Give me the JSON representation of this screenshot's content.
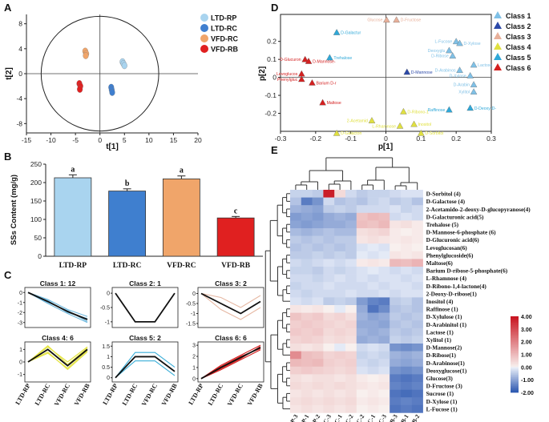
{
  "panels": {
    "A": {
      "letter": "A",
      "xlabel": "t[1]",
      "ylabel": "t[2]",
      "xticks": [
        -15,
        -10,
        -5,
        0,
        5,
        10,
        15,
        20
      ],
      "yticks": [
        -8,
        -4,
        0,
        4,
        8
      ],
      "xlim": [
        -15,
        20
      ],
      "ylim": [
        -9.5,
        9.5
      ],
      "legend": [
        {
          "label": "LTD-RP",
          "color": "#a9d4ef"
        },
        {
          "label": "LTD-RC",
          "color": "#3f7fcf"
        },
        {
          "label": "VFD-RC",
          "color": "#f0a56a"
        },
        {
          "label": "VFD-RB",
          "color": "#e02020"
        }
      ],
      "groups": [
        {
          "name": "LTD-RP",
          "color": "#a9d4ef",
          "points": [
            [
              4.6,
              1.9
            ],
            [
              4.8,
              1.6
            ],
            [
              5.0,
              1.3
            ]
          ]
        },
        {
          "name": "LTD-RC",
          "color": "#3f7fcf",
          "points": [
            [
              2.3,
              -2.2
            ],
            [
              2.4,
              -2.6
            ],
            [
              2.5,
              -3.0
            ]
          ]
        },
        {
          "name": "VFD-RC",
          "color": "#f0a56a",
          "points": [
            [
              -3.0,
              3.6
            ],
            [
              -2.8,
              3.2
            ],
            [
              -2.9,
              2.9
            ]
          ]
        },
        {
          "name": "VFD-RB",
          "color": "#e02020",
          "points": [
            [
              -4.2,
              -1.6
            ],
            [
              -4.0,
              -2.0
            ],
            [
              -4.1,
              -2.5
            ]
          ]
        }
      ]
    },
    "B": {
      "letter": "B",
      "ylabel": "SSs Content (mg/g)",
      "yticks": [
        0,
        50,
        100,
        150,
        200,
        250
      ],
      "ylim": [
        0,
        250
      ],
      "categories": [
        "LTD-RP",
        "LTD-RC",
        "VFD-RC",
        "VFD-RB"
      ],
      "values": [
        213,
        177,
        210,
        104
      ],
      "errors": [
        8,
        6,
        8,
        4
      ],
      "letters": [
        "a",
        "b",
        "a",
        "c"
      ],
      "colors": [
        "#a9d4ef",
        "#3f7fcf",
        "#f0a56a",
        "#e02020"
      ]
    },
    "C": {
      "letter": "C",
      "xlabels": [
        "LTD-RP",
        "LTD-RC",
        "VFD-RC",
        "VFD-RB"
      ],
      "classes": [
        {
          "title": "Class 1: 12",
          "yticks": [
            0,
            -1,
            -2,
            -3
          ],
          "ylim": [
            -3.5,
            0.5
          ],
          "color": "#6fb8dd",
          "mean": [
            0,
            -0.9,
            -1.9,
            -2.7
          ],
          "lines": [
            [
              0,
              -0.7,
              -1.7,
              -2.4
            ],
            [
              0,
              -1.1,
              -2.1,
              -3.0
            ],
            [
              0,
              -0.8,
              -2.0,
              -2.6
            ],
            [
              0,
              -1.0,
              -1.8,
              -2.9
            ]
          ]
        },
        {
          "title": "Class 2: 1",
          "yticks": [
            0,
            -0.5,
            -1
          ],
          "ylim": [
            -1.2,
            0.2
          ],
          "color": "#1a1a1a",
          "mean": [
            0,
            -1,
            -1,
            0
          ],
          "lines": []
        },
        {
          "title": "Class 3: 2",
          "yticks": [
            0,
            -0.5,
            -1,
            -1.5
          ],
          "ylim": [
            -1.7,
            0.3
          ],
          "color": "#e6b8a3",
          "mean": [
            0,
            -0.5,
            -1.0,
            -0.4
          ],
          "lines": [
            [
              0,
              -0.2,
              -0.7,
              -0.1
            ],
            [
              0,
              -0.8,
              -1.3,
              -0.7
            ]
          ]
        },
        {
          "title": "Class 4: 6",
          "yticks": [
            1,
            0,
            -1
          ],
          "ylim": [
            -1.6,
            1.6
          ],
          "color": "#e3e340",
          "mean": [
            0,
            1.0,
            -0.3,
            1.0
          ],
          "lines": [
            [
              0,
              1.2,
              0.0,
              1.2
            ],
            [
              0,
              0.8,
              -0.6,
              0.8
            ],
            [
              0,
              1.3,
              -0.2,
              1.1
            ],
            [
              0,
              0.7,
              -0.5,
              0.9
            ]
          ]
        },
        {
          "title": "Class 5: 2",
          "yticks": [
            1.5,
            1,
            0.5,
            0
          ],
          "ylim": [
            -0.2,
            1.7
          ],
          "color": "#3aaed8",
          "mean": [
            0,
            1.0,
            1.0,
            0.3
          ],
          "lines": [
            [
              0,
              1.2,
              1.2,
              0.5
            ],
            [
              0,
              0.8,
              0.8,
              0.1
            ]
          ]
        },
        {
          "title": "Class 6: 6",
          "yticks": [
            3,
            2,
            1,
            0
          ],
          "ylim": [
            -0.3,
            3.3
          ],
          "color": "#d42020",
          "mean": [
            0,
            1.0,
            1.9,
            2.8
          ],
          "lines": [
            [
              0,
              0.8,
              1.7,
              2.6
            ],
            [
              0,
              1.2,
              2.1,
              3.0
            ],
            [
              0,
              0.9,
              1.8,
              2.9
            ],
            [
              0,
              1.1,
              2.0,
              2.7
            ]
          ]
        }
      ]
    },
    "D": {
      "letter": "D",
      "xlabel": "p[1]",
      "ylabel": "p[2]",
      "xticks": [
        -0.3,
        -0.2,
        -0.1,
        0,
        0.1,
        0.2,
        0.3
      ],
      "yticks": [
        -0.2,
        -0.1,
        0,
        0.1,
        0.2
      ],
      "xlim": [
        -0.3,
        0.3
      ],
      "ylim": [
        -0.3,
        0.35
      ],
      "legend": [
        {
          "label": "Class 1",
          "color": "#7fc0e6"
        },
        {
          "label": "Class 2",
          "color": "#2c49a8"
        },
        {
          "label": "Class 3",
          "color": "#e8b09a"
        },
        {
          "label": "Class 4",
          "color": "#e0e040"
        },
        {
          "label": "Class 5",
          "color": "#2fa8d8"
        },
        {
          "label": "Class 6",
          "color": "#d42020"
        }
      ],
      "points": [
        {
          "label": "Glucose",
          "cls": 3,
          "x": 0.002,
          "y": 0.32,
          "side": "left"
        },
        {
          "label": "D-Fructose",
          "cls": 3,
          "x": 0.03,
          "y": 0.32,
          "side": "right"
        },
        {
          "label": "D-Galactur",
          "cls": 5,
          "x": -0.14,
          "y": 0.25,
          "side": "right"
        },
        {
          "label": "L-Fucose",
          "cls": 1,
          "x": 0.2,
          "y": 0.2,
          "side": "left"
        },
        {
          "label": "D-Xylose",
          "cls": 1,
          "x": 0.21,
          "y": 0.19,
          "side": "right"
        },
        {
          "label": "Deoxyglu",
          "cls": 1,
          "x": 0.18,
          "y": 0.15,
          "side": "left"
        },
        {
          "label": "D-Ribose",
          "cls": 1,
          "x": 0.19,
          "y": 0.12,
          "side": "left"
        },
        {
          "label": "D-Glucuron",
          "cls": 6,
          "x": -0.23,
          "y": 0.1,
          "side": "left"
        },
        {
          "label": "D-Mannose-",
          "cls": 6,
          "x": -0.22,
          "y": 0.09,
          "side": "right"
        },
        {
          "label": "Trehalose",
          "cls": 5,
          "x": -0.16,
          "y": 0.11,
          "side": "right"
        },
        {
          "label": "Lactose",
          "cls": 1,
          "x": 0.25,
          "y": 0.07,
          "side": "right"
        },
        {
          "label": "D-Arabinos",
          "cls": 1,
          "x": 0.21,
          "y": 0.04,
          "side": "left"
        },
        {
          "label": "D-Mannose",
          "cls": 2,
          "x": 0.06,
          "y": 0.03,
          "side": "right"
        },
        {
          "label": "Levoglucos",
          "cls": 6,
          "x": -0.24,
          "y": 0.02,
          "side": "left"
        },
        {
          "label": "D-Xylose",
          "cls": 1,
          "x": 0.24,
          "y": 0.01,
          "side": "left"
        },
        {
          "label": "Phenylgluc",
          "cls": 6,
          "x": -0.24,
          "y": -0.01,
          "side": "left"
        },
        {
          "label": "Barium D-r",
          "cls": 6,
          "x": -0.21,
          "y": -0.03,
          "side": "right"
        },
        {
          "label": "D-Arabin",
          "cls": 1,
          "x": 0.25,
          "y": -0.04,
          "side": "left"
        },
        {
          "label": "Xylitol",
          "cls": 1,
          "x": 0.25,
          "y": -0.08,
          "side": "left"
        },
        {
          "label": "Maltose",
          "cls": 6,
          "x": -0.18,
          "y": -0.14,
          "side": "right"
        },
        {
          "label": "Raffinose",
          "cls": 5,
          "x": 0.18,
          "y": -0.18,
          "side": "left"
        },
        {
          "label": "D-Deoxy-D-",
          "cls": 5,
          "x": 0.24,
          "y": -0.17,
          "side": "right"
        },
        {
          "label": "D-Ribono-1",
          "cls": 4,
          "x": 0.05,
          "y": -0.19,
          "side": "right"
        },
        {
          "label": "2-Acetamid",
          "cls": 4,
          "x": -0.04,
          "y": -0.24,
          "side": "left"
        },
        {
          "label": "L-Rhamnose",
          "cls": 4,
          "x": 0.04,
          "y": -0.27,
          "side": "left"
        },
        {
          "label": "Inositol",
          "cls": 4,
          "x": 0.08,
          "y": -0.26,
          "side": "right"
        },
        {
          "label": "D-Galacton",
          "cls": 4,
          "x": -0.14,
          "y": -0.31,
          "side": "right"
        },
        {
          "label": "D-Sorbitol",
          "cls": 4,
          "x": 0.1,
          "y": -0.31,
          "side": "right"
        }
      ]
    },
    "E": {
      "letter": "E",
      "columns": [
        "LTD-RP-3",
        "LTD-RP-1",
        "LTD-RP-2",
        "LTD-RC-3",
        "LTD-RC-1",
        "LTD-RC-2",
        "VFD-RC-2",
        "VFD-RC-1",
        "VFD-RC-3",
        "VFD-RB-3",
        "VFD-RB-1",
        "VFD-RB-2"
      ],
      "rows": [
        "D-Sorbitol (4)",
        "D-Galactose (4)",
        "2-Acetamido-2-deoxy-D-glucopyranose(4)",
        "D-Galacturonic acid(5)",
        "Trehalose (5)",
        "D-Mannose-6-phosphate (6)",
        "D-Glucuronic acid(6)",
        "Levoglucosan(6)",
        "Phenylglucoside(6)",
        "Maltose(6)",
        "Barium D-ribose-5-phosphate(6)",
        "L-Rhamnose (4)",
        "D-Ribono-1,4-lactone(4)",
        "2-Deoxy-D-ribose(1)",
        "Inositol (4)",
        "Raffinose (1)",
        "D-Xylulose (1)",
        "D-Arabinitol (1)",
        "Lactose (1)",
        "Xylitol (1)",
        "D-Mannose(2)",
        "D-Ribose(1)",
        "D-Arabinose(1)",
        "Deoxyglucose(1)",
        "Glucose(3)",
        "D-Fructose (3)",
        "Sucrose (1)",
        "D-Xylose (1)",
        "L-Fucose (1)"
      ],
      "values": [
        [
          -0.4,
          -0.4,
          -0.5,
          3.8,
          0.4,
          -0.3,
          -0.5,
          -0.4,
          -0.4,
          -0.3,
          -0.2,
          -0.2
        ],
        [
          -0.6,
          -1.5,
          -1.2,
          -0.3,
          -0.6,
          -0.5,
          -0.6,
          -0.4,
          -0.3,
          -0.5,
          -0.4,
          -0.6
        ],
        [
          -0.8,
          -0.9,
          -1.0,
          -0.5,
          -0.4,
          -0.5,
          -0.3,
          -0.3,
          -0.3,
          -0.2,
          -0.4,
          -0.3
        ],
        [
          -1.1,
          -1.0,
          -1.1,
          -0.9,
          -0.8,
          -0.9,
          0.8,
          1.0,
          0.9,
          -0.3,
          -0.2,
          -0.3
        ],
        [
          -1.0,
          -1.1,
          -1.0,
          -0.9,
          -0.9,
          -0.8,
          0.9,
          0.8,
          1.0,
          0.2,
          0.3,
          0.1
        ],
        [
          -0.7,
          -0.8,
          -0.7,
          -0.6,
          -0.7,
          -0.7,
          0.3,
          0.4,
          0.5,
          0.1,
          0.0,
          0.1
        ],
        [
          -0.5,
          -0.6,
          -0.5,
          -0.6,
          -0.5,
          -0.5,
          0.2,
          0.3,
          0.2,
          0.1,
          0.2,
          0.1
        ],
        [
          -0.6,
          -0.5,
          -0.6,
          -0.5,
          -0.6,
          -0.5,
          -0.2,
          -0.1,
          -0.2,
          0.0,
          0.1,
          0.0
        ],
        [
          -0.5,
          -0.5,
          -0.4,
          -0.5,
          -0.4,
          -0.5,
          -0.1,
          -0.2,
          -0.1,
          0.2,
          0.1,
          0.2
        ],
        [
          -0.3,
          -0.4,
          -0.3,
          -0.2,
          -0.3,
          -0.2,
          0.1,
          0.2,
          0.1,
          1.0,
          0.9,
          1.1
        ],
        [
          -0.4,
          -0.4,
          -0.5,
          -0.3,
          -0.4,
          -0.3,
          -0.2,
          -0.1,
          -0.2,
          -0.3,
          -0.2,
          -0.3
        ],
        [
          -0.3,
          -0.3,
          -0.4,
          -0.3,
          -0.2,
          -0.3,
          -0.2,
          -0.3,
          -0.2,
          -0.2,
          -0.3,
          -0.2
        ],
        [
          -0.4,
          -0.3,
          -0.3,
          -0.2,
          -0.3,
          -0.3,
          -0.3,
          -0.2,
          -0.3,
          -0.2,
          -0.2,
          -0.3
        ],
        [
          -0.3,
          -0.4,
          -0.3,
          -0.3,
          -0.3,
          -0.2,
          -0.3,
          -0.3,
          -0.2,
          -0.3,
          -0.2,
          -0.2
        ],
        [
          -0.2,
          -0.3,
          -0.2,
          -0.5,
          -0.4,
          -0.5,
          -1.1,
          -1.4,
          -1.5,
          -0.5,
          -0.4,
          -0.6
        ],
        [
          0.2,
          0.1,
          0.2,
          0.0,
          -0.1,
          0.0,
          -0.9,
          -1.6,
          -1.3,
          -0.6,
          -0.5,
          -0.6
        ],
        [
          0.8,
          0.6,
          0.7,
          0.4,
          0.5,
          0.3,
          -0.8,
          -1.0,
          -0.9,
          -0.5,
          -0.6,
          -0.5
        ],
        [
          0.6,
          0.7,
          0.6,
          0.5,
          0.4,
          0.5,
          -0.9,
          -0.9,
          -1.0,
          -0.6,
          -0.5,
          -0.6
        ],
        [
          0.7,
          0.6,
          0.7,
          0.4,
          0.5,
          0.4,
          -0.8,
          -0.9,
          -0.8,
          -0.5,
          -0.6,
          -0.5
        ],
        [
          0.5,
          0.6,
          0.5,
          0.3,
          0.4,
          0.3,
          -0.9,
          -0.8,
          -0.9,
          -0.4,
          -0.5,
          -0.4
        ],
        [
          0.3,
          0.2,
          0.3,
          0.0,
          -0.1,
          0.0,
          -0.3,
          -0.2,
          -0.3,
          -1.2,
          -1.3,
          -1.2
        ],
        [
          1.8,
          0.9,
          0.8,
          0.5,
          0.6,
          0.5,
          -0.4,
          -0.3,
          -0.4,
          -0.8,
          -0.9,
          -0.8
        ],
        [
          1.0,
          0.9,
          1.0,
          0.6,
          0.5,
          0.6,
          -0.3,
          -0.4,
          -0.3,
          -0.9,
          -1.0,
          -0.9
        ],
        [
          0.6,
          0.7,
          0.6,
          0.5,
          0.4,
          0.5,
          -0.2,
          -0.3,
          -0.2,
          -1.2,
          -1.3,
          -1.2
        ],
        [
          0.3,
          0.2,
          0.3,
          0.3,
          0.2,
          0.3,
          0.1,
          0.0,
          0.1,
          -1.5,
          -1.6,
          -1.5
        ],
        [
          0.4,
          0.3,
          0.4,
          0.3,
          0.4,
          0.3,
          0.2,
          0.1,
          0.2,
          -1.4,
          -1.5,
          -1.4
        ],
        [
          0.2,
          0.3,
          0.2,
          0.3,
          0.2,
          0.3,
          0.0,
          0.1,
          0.0,
          -1.6,
          -1.7,
          -1.6
        ],
        [
          0.3,
          0.4,
          0.3,
          0.4,
          0.3,
          0.4,
          0.1,
          0.2,
          0.1,
          -1.5,
          -1.4,
          -1.5
        ],
        [
          0.2,
          0.3,
          0.2,
          0.3,
          0.2,
          0.3,
          0.0,
          0.1,
          0.0,
          -1.6,
          -1.5,
          -1.6
        ]
      ],
      "scale_ticks": [
        "4.00",
        "3.00",
        "2.00",
        "1.00",
        "0.00",
        "-1.00",
        "-2.00"
      ],
      "scale_range": [
        -2,
        4
      ]
    }
  }
}
